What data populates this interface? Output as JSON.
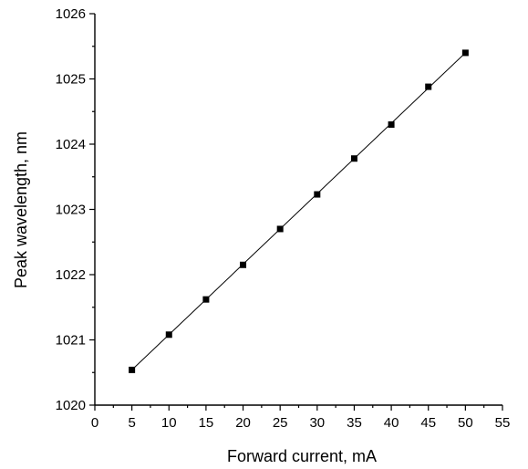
{
  "chart_data": {
    "type": "line",
    "title": "",
    "xlabel": "Forward current, mA",
    "ylabel": "Peak wavelength, nm",
    "xlim": [
      0,
      55
    ],
    "ylim": [
      1020,
      1026
    ],
    "x_ticks": [
      0,
      5,
      10,
      15,
      20,
      25,
      30,
      35,
      40,
      45,
      50,
      55
    ],
    "y_ticks": [
      1020,
      1021,
      1022,
      1023,
      1024,
      1025,
      1026
    ],
    "x_tick_labels": [
      "0",
      "5",
      "10",
      "15",
      "20",
      "25",
      "30",
      "35",
      "40",
      "45",
      "50",
      "55"
    ],
    "y_tick_labels": [
      "1020",
      "1021",
      "1022",
      "1023",
      "1024",
      "1025",
      "1026"
    ],
    "grid": false,
    "series": [
      {
        "marker": "square",
        "line": "linear fit",
        "x": [
          5,
          10,
          15,
          20,
          25,
          30,
          35,
          40,
          45,
          50
        ],
        "y": [
          1020.54,
          1021.08,
          1021.62,
          1022.15,
          1022.7,
          1023.23,
          1023.78,
          1024.3,
          1024.88,
          1025.4
        ]
      }
    ]
  }
}
